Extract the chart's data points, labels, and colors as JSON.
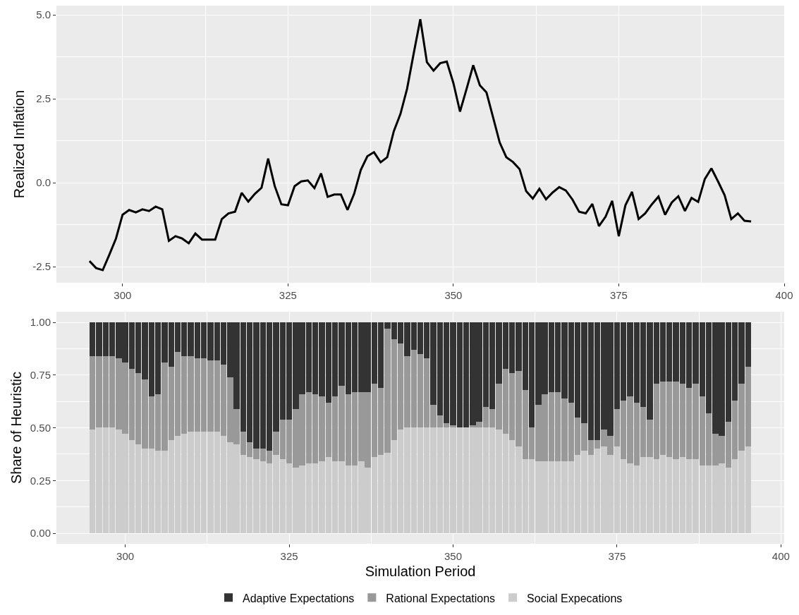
{
  "chart_data": [
    {
      "type": "line",
      "ylabel": "Realized Inflation",
      "grid": true,
      "xlim": [
        290,
        400
      ],
      "xticks": [
        300,
        325,
        350,
        375,
        400
      ],
      "ylim": [
        -2.975,
        5.275
      ],
      "yticks": [
        {
          "value": -2.5,
          "label": "-2.5"
        },
        {
          "value": 0,
          "label": "0.0"
        },
        {
          "value": 2.5,
          "label": "2.5"
        },
        {
          "value": 5,
          "label": "5.0"
        }
      ],
      "x": [
        295,
        296,
        297,
        298,
        299,
        300,
        301,
        302,
        303,
        304,
        305,
        306,
        307,
        308,
        309,
        310,
        311,
        312,
        313,
        314,
        315,
        316,
        317,
        318,
        319,
        320,
        321,
        322,
        323,
        324,
        325,
        326,
        327,
        328,
        329,
        330,
        331,
        332,
        333,
        334,
        335,
        336,
        337,
        338,
        339,
        340,
        341,
        342,
        343,
        344,
        345,
        346,
        347,
        348,
        349,
        350,
        351,
        352,
        353,
        354,
        355,
        356,
        357,
        358,
        359,
        360,
        361,
        362,
        363,
        364,
        365,
        366,
        367,
        368,
        369,
        370,
        371,
        372,
        373,
        374,
        375,
        376,
        377,
        378,
        379,
        380,
        381,
        382,
        383,
        384,
        385,
        386,
        387,
        388,
        389,
        390,
        391,
        392,
        393,
        394,
        395
      ],
      "series": [
        {
          "color": "#000000",
          "values": [
            -2.33,
            -2.54,
            -2.6,
            -2.14,
            -1.66,
            -0.95,
            -0.81,
            -0.88,
            -0.79,
            -0.84,
            -0.71,
            -0.79,
            -1.73,
            -1.59,
            -1.66,
            -1.8,
            -1.51,
            -1.69,
            -1.69,
            -1.69,
            -1.08,
            -0.91,
            -0.86,
            -0.3,
            -0.56,
            -0.33,
            -0.15,
            0.72,
            -0.1,
            -0.64,
            -0.67,
            -0.1,
            0.04,
            0.07,
            -0.16,
            0.28,
            -0.42,
            -0.35,
            -0.35,
            -0.81,
            -0.33,
            0.38,
            0.79,
            0.91,
            0.61,
            0.76,
            1.54,
            2.05,
            2.8,
            3.85,
            4.87,
            3.59,
            3.34,
            3.56,
            3.61,
            2.97,
            2.12,
            2.8,
            3.5,
            2.9,
            2.69,
            1.95,
            1.2,
            0.76,
            0.62,
            0.41,
            -0.25,
            -0.47,
            -0.18,
            -0.49,
            -0.29,
            -0.13,
            -0.23,
            -0.5,
            -0.86,
            -0.91,
            -0.63,
            -1.29,
            -1.01,
            -0.54,
            -1.59,
            -0.67,
            -0.27,
            -1.08,
            -0.91,
            -0.64,
            -0.41,
            -0.95,
            -0.59,
            -0.4,
            -0.84,
            -0.45,
            -0.57,
            0.11,
            0.43,
            0.04,
            -0.37,
            -1.08,
            -0.91,
            -1.13,
            -1.15
          ]
        }
      ]
    },
    {
      "type": "bar",
      "stacked": true,
      "xlabel": "Simulation Period",
      "ylabel": "Share of Heuristic",
      "grid": true,
      "legend": "bottom",
      "xlim": [
        289.5,
        400.5
      ],
      "xticks": [
        300,
        325,
        350,
        375,
        400
      ],
      "ylim": [
        -0.05,
        1.05
      ],
      "yticks": [
        {
          "value": 0,
          "label": "0.00"
        },
        {
          "value": 0.25,
          "label": "0.25"
        },
        {
          "value": 0.5,
          "label": "0.50"
        },
        {
          "value": 0.75,
          "label": "0.75"
        },
        {
          "value": 1,
          "label": "1.00"
        }
      ],
      "x": [
        295,
        296,
        297,
        298,
        299,
        300,
        301,
        302,
        303,
        304,
        305,
        306,
        307,
        308,
        309,
        310,
        311,
        312,
        313,
        314,
        315,
        316,
        317,
        318,
        319,
        320,
        321,
        322,
        323,
        324,
        325,
        326,
        327,
        328,
        329,
        330,
        331,
        332,
        333,
        334,
        335,
        336,
        337,
        338,
        339,
        340,
        341,
        342,
        343,
        344,
        345,
        346,
        347,
        348,
        349,
        350,
        351,
        352,
        353,
        354,
        355,
        356,
        357,
        358,
        359,
        360,
        361,
        362,
        363,
        364,
        365,
        366,
        367,
        368,
        369,
        370,
        371,
        372,
        373,
        374,
        375,
        376,
        377,
        378,
        379,
        380,
        381,
        382,
        383,
        384,
        385,
        386,
        387,
        388,
        389,
        390,
        391,
        392,
        393,
        394,
        395
      ],
      "series": [
        {
          "name": "Social Expecations",
          "color": "#cccccc",
          "values": [
            0.49,
            0.5,
            0.5,
            0.5,
            0.49,
            0.47,
            0.44,
            0.42,
            0.4,
            0.4,
            0.39,
            0.39,
            0.44,
            0.46,
            0.47,
            0.48,
            0.48,
            0.48,
            0.48,
            0.48,
            0.46,
            0.43,
            0.42,
            0.37,
            0.36,
            0.35,
            0.34,
            0.33,
            0.37,
            0.35,
            0.33,
            0.31,
            0.32,
            0.33,
            0.33,
            0.34,
            0.36,
            0.34,
            0.34,
            0.32,
            0.32,
            0.34,
            0.31,
            0.36,
            0.37,
            0.38,
            0.44,
            0.49,
            0.5,
            0.5,
            0.5,
            0.5,
            0.5,
            0.5,
            0.5,
            0.5,
            0.5,
            0.5,
            0.5,
            0.5,
            0.5,
            0.5,
            0.49,
            0.47,
            0.44,
            0.41,
            0.35,
            0.35,
            0.34,
            0.34,
            0.34,
            0.34,
            0.34,
            0.34,
            0.37,
            0.39,
            0.37,
            0.4,
            0.41,
            0.37,
            0.41,
            0.35,
            0.33,
            0.32,
            0.36,
            0.36,
            0.35,
            0.37,
            0.36,
            0.35,
            0.36,
            0.35,
            0.35,
            0.32,
            0.32,
            0.32,
            0.33,
            0.31,
            0.35,
            0.39,
            0.41
          ]
        },
        {
          "name": "Rational Expectations",
          "color": "#999999",
          "values": [
            0.35,
            0.34,
            0.34,
            0.34,
            0.34,
            0.34,
            0.34,
            0.34,
            0.33,
            0.25,
            0.27,
            0.42,
            0.35,
            0.4,
            0.37,
            0.36,
            0.35,
            0.35,
            0.34,
            0.34,
            0.34,
            0.31,
            0.17,
            0.11,
            0.07,
            0.05,
            0.06,
            0.06,
            0.11,
            0.19,
            0.21,
            0.28,
            0.34,
            0.34,
            0.33,
            0.31,
            0.26,
            0.31,
            0.36,
            0.34,
            0.35,
            0.33,
            0.36,
            0.35,
            0.32,
            0.59,
            0.48,
            0.41,
            0.34,
            0.37,
            0.35,
            0.33,
            0.11,
            0.06,
            0.02,
            0.01,
            0,
            0,
            0.01,
            0.03,
            0.1,
            0.09,
            0.22,
            0.31,
            0.32,
            0.36,
            0.33,
            0.15,
            0.27,
            0.32,
            0.33,
            0.33,
            0.3,
            0.28,
            0.18,
            0.13,
            0.07,
            0.04,
            0.08,
            0.09,
            0.18,
            0.28,
            0.32,
            0.3,
            0.24,
            0.18,
            0.36,
            0.35,
            0.36,
            0.37,
            0.35,
            0.34,
            0.36,
            0.33,
            0.25,
            0.15,
            0.13,
            0.22,
            0.28,
            0.32,
            0.38
          ]
        },
        {
          "name": "Adaptive Expectations",
          "color": "#333333",
          "values": [
            0.16,
            0.16,
            0.16,
            0.16,
            0.17,
            0.19,
            0.22,
            0.24,
            0.27,
            0.35,
            0.34,
            0.19,
            0.21,
            0.14,
            0.16,
            0.16,
            0.17,
            0.17,
            0.18,
            0.18,
            0.2,
            0.26,
            0.41,
            0.52,
            0.57,
            0.6,
            0.6,
            0.61,
            0.52,
            0.46,
            0.46,
            0.41,
            0.34,
            0.33,
            0.34,
            0.35,
            0.38,
            0.35,
            0.3,
            0.34,
            0.33,
            0.33,
            0.33,
            0.29,
            0.31,
            0.03,
            0.08,
            0.1,
            0.16,
            0.13,
            0.15,
            0.17,
            0.39,
            0.44,
            0.48,
            0.49,
            0.5,
            0.5,
            0.49,
            0.47,
            0.4,
            0.41,
            0.29,
            0.22,
            0.24,
            0.23,
            0.32,
            0.5,
            0.39,
            0.34,
            0.33,
            0.33,
            0.36,
            0.38,
            0.45,
            0.48,
            0.56,
            0.56,
            0.51,
            0.54,
            0.41,
            0.37,
            0.35,
            0.38,
            0.4,
            0.46,
            0.29,
            0.28,
            0.28,
            0.28,
            0.29,
            0.31,
            0.29,
            0.35,
            0.43,
            0.53,
            0.54,
            0.47,
            0.37,
            0.29,
            0.21
          ]
        }
      ]
    }
  ]
}
